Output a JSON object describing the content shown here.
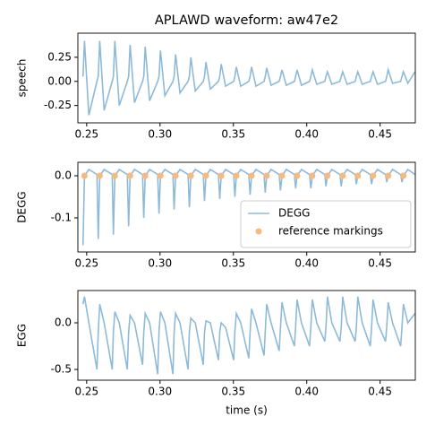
{
  "chart_data": [
    {
      "type": "line",
      "title": "APLAWD waveform: aw47e2",
      "ylabel": "speech",
      "xlim": [
        0.244,
        0.474
      ],
      "xticks": [
        0.25,
        {
          "value": 0.3,
          "label": "0.30"
        },
        0.35,
        {
          "value": 0.4,
          "label": "0.40"
        },
        0.45
      ],
      "ylim": [
        -0.43,
        0.5
      ],
      "yticks": [
        -0.25,
        {
          "value": 0,
          "label": "0.00"
        },
        0.25
      ],
      "x": [
        0.2475,
        0.2485,
        0.2515,
        0.257,
        0.2579,
        0.2589,
        0.2619,
        0.2674,
        0.2682,
        0.2692,
        0.2722,
        0.2777,
        0.2786,
        0.2796,
        0.2826,
        0.2881,
        0.2889,
        0.2899,
        0.2929,
        0.2984,
        0.2993,
        0.3003,
        0.3033,
        0.3088,
        0.3096,
        0.3106,
        0.3136,
        0.3191,
        0.32,
        0.321,
        0.324,
        0.3295,
        0.3303,
        0.3313,
        0.3343,
        0.3398,
        0.3407,
        0.3417,
        0.3447,
        0.3502,
        0.351,
        0.352,
        0.355,
        0.3605,
        0.3614,
        0.3624,
        0.3654,
        0.3709,
        0.3717,
        0.3727,
        0.3757,
        0.3812,
        0.3821,
        0.3831,
        0.3861,
        0.3916,
        0.3924,
        0.3934,
        0.3964,
        0.4019,
        0.4028,
        0.4038,
        0.4068,
        0.4123,
        0.4131,
        0.4141,
        0.4171,
        0.4226,
        0.4235,
        0.4245,
        0.4275,
        0.433,
        0.4338,
        0.4348,
        0.4378,
        0.4433,
        0.4442,
        0.4452,
        0.4482,
        0.4537,
        0.4545,
        0.4555,
        0.4585,
        0.464,
        0.4649,
        0.4659,
        0.4689,
        0.4738
      ],
      "series": [
        {
          "type": "line",
          "color": "#8dbad9",
          "values": [
            0.05,
            0.42,
            -0.35,
            0.0,
            0.05,
            0.42,
            -0.3,
            0.0,
            0.05,
            0.42,
            -0.25,
            0.0,
            0.05,
            0.38,
            -0.22,
            0.0,
            0.05,
            0.36,
            -0.2,
            0.0,
            0.05,
            0.32,
            -0.15,
            0.0,
            0.05,
            0.28,
            -0.12,
            0.0,
            0.05,
            0.25,
            -0.1,
            0.0,
            0.05,
            0.2,
            -0.08,
            0.0,
            0.05,
            0.18,
            -0.05,
            0.0,
            0.05,
            0.15,
            -0.05,
            0.0,
            0.05,
            0.15,
            -0.05,
            0.0,
            0.05,
            0.14,
            -0.04,
            0.0,
            0.05,
            0.12,
            -0.04,
            0.0,
            0.05,
            0.12,
            -0.04,
            0.0,
            0.05,
            0.12,
            -0.03,
            0.0,
            0.05,
            0.1,
            -0.03,
            0.0,
            0.05,
            0.1,
            -0.03,
            0.0,
            0.05,
            0.1,
            -0.03,
            0.0,
            0.05,
            0.1,
            -0.03,
            0.0,
            0.05,
            0.12,
            -0.02,
            0.0,
            0.05,
            0.1,
            -0.02,
            0.1
          ]
        }
      ]
    },
    {
      "type": "line",
      "ylabel": "DEGG",
      "xlim": [
        0.244,
        0.474
      ],
      "xticks": [
        0.25,
        {
          "value": 0.3,
          "label": "0.30"
        },
        0.35,
        {
          "value": 0.4,
          "label": "0.40"
        },
        0.45
      ],
      "ylim": [
        -0.181,
        0.032
      ],
      "yticks": [
        -0.1,
        {
          "value": 0,
          "label": "0.0"
        }
      ],
      "legend": "lower right",
      "x": [
        0.2475,
        0.2485,
        0.2515,
        0.257,
        0.2579,
        0.2589,
        0.2619,
        0.2674,
        0.2682,
        0.2692,
        0.2722,
        0.2777,
        0.2786,
        0.2796,
        0.2826,
        0.2881,
        0.2889,
        0.2899,
        0.2929,
        0.2984,
        0.2993,
        0.3003,
        0.3033,
        0.3088,
        0.3096,
        0.3106,
        0.3136,
        0.3191,
        0.32,
        0.321,
        0.324,
        0.3295,
        0.3303,
        0.3313,
        0.3343,
        0.3398,
        0.3407,
        0.3417,
        0.3447,
        0.3502,
        0.351,
        0.352,
        0.355,
        0.3605,
        0.3614,
        0.3624,
        0.3654,
        0.3709,
        0.3717,
        0.3727,
        0.3757,
        0.3812,
        0.3821,
        0.3831,
        0.3861,
        0.3916,
        0.3924,
        0.3934,
        0.3964,
        0.4019,
        0.4028,
        0.4038,
        0.4068,
        0.4123,
        0.4131,
        0.4141,
        0.4171,
        0.4226,
        0.4235,
        0.4245,
        0.4275,
        0.433,
        0.4338,
        0.4348,
        0.4378,
        0.4433,
        0.4442,
        0.4452,
        0.4482,
        0.4537,
        0.4545,
        0.4555,
        0.4585,
        0.464,
        0.4649,
        0.4659,
        0.4689,
        0.4738
      ],
      "series": [
        {
          "type": "line",
          "name": "DEGG",
          "color": "#8dbad9",
          "values": [
            -0.165,
            0.0,
            0.015,
            0.003,
            -0.15,
            0.0,
            0.015,
            0.003,
            -0.14,
            0.0,
            0.015,
            0.003,
            -0.12,
            0.0,
            0.015,
            0.003,
            -0.1,
            0.0,
            0.015,
            0.003,
            -0.09,
            0.0,
            0.015,
            0.003,
            -0.08,
            0.0,
            0.015,
            0.003,
            -0.075,
            0.0,
            0.015,
            0.003,
            -0.06,
            0.0,
            0.015,
            0.003,
            -0.055,
            0.0,
            0.015,
            0.003,
            -0.05,
            0.0,
            0.015,
            0.003,
            -0.045,
            0.0,
            0.015,
            0.003,
            -0.04,
            0.0,
            0.015,
            0.003,
            -0.035,
            0.0,
            0.015,
            0.003,
            -0.03,
            0.0,
            0.015,
            0.003,
            -0.03,
            0.0,
            0.015,
            0.003,
            -0.025,
            0.0,
            0.015,
            0.003,
            -0.025,
            0.0,
            0.015,
            0.003,
            -0.02,
            0.0,
            0.015,
            0.003,
            -0.02,
            0.0,
            0.015,
            0.003,
            -0.015,
            0.0,
            0.015,
            0.003,
            -0.015,
            0.0,
            0.015,
            0.003
          ]
        },
        {
          "type": "scatter",
          "name": "reference markings",
          "color": "#f8b97e",
          "x": [
            0.2485,
            0.2589,
            0.2692,
            0.2796,
            0.2899,
            0.3003,
            0.3106,
            0.321,
            0.3313,
            0.3417,
            0.352,
            0.3624,
            0.3727,
            0.3831,
            0.3934,
            0.4038,
            0.4141,
            0.4245,
            0.4348,
            0.4452,
            0.4555,
            0.4659
          ],
          "values": [
            0,
            0,
            0,
            0,
            0,
            0,
            0,
            0,
            0,
            0,
            0,
            0,
            0,
            0,
            0,
            0,
            0,
            0,
            0,
            0,
            0,
            0
          ]
        }
      ]
    },
    {
      "type": "line",
      "ylabel": "EGG",
      "xlabel": "time (s)",
      "xlim": [
        0.244,
        0.474
      ],
      "xticks": [
        0.25,
        {
          "value": 0.3,
          "label": "0.30"
        },
        0.35,
        {
          "value": 0.4,
          "label": "0.40"
        },
        0.45
      ],
      "ylim": [
        -0.615,
        0.346
      ],
      "yticks": [
        -0.5,
        {
          "value": 0,
          "label": "0.0"
        }
      ],
      "x": [
        0.2475,
        0.2485,
        0.2515,
        0.257,
        0.2579,
        0.2589,
        0.2619,
        0.2674,
        0.2682,
        0.2692,
        0.2722,
        0.2777,
        0.2786,
        0.2796,
        0.2826,
        0.2881,
        0.2889,
        0.2899,
        0.2929,
        0.2984,
        0.2993,
        0.3003,
        0.3033,
        0.3088,
        0.3096,
        0.3106,
        0.3136,
        0.3191,
        0.32,
        0.321,
        0.324,
        0.3295,
        0.3303,
        0.3313,
        0.3343,
        0.3398,
        0.3407,
        0.3417,
        0.3447,
        0.3502,
        0.351,
        0.352,
        0.355,
        0.3605,
        0.3614,
        0.3624,
        0.3654,
        0.3709,
        0.3717,
        0.3727,
        0.3757,
        0.3812,
        0.3821,
        0.3831,
        0.3861,
        0.3916,
        0.3924,
        0.3934,
        0.3964,
        0.4019,
        0.4028,
        0.4038,
        0.4068,
        0.4123,
        0.4131,
        0.4141,
        0.4171,
        0.4226,
        0.4235,
        0.4245,
        0.4275,
        0.433,
        0.4338,
        0.4348,
        0.4378,
        0.4433,
        0.4442,
        0.4452,
        0.4482,
        0.4537,
        0.4545,
        0.4555,
        0.4585,
        0.464,
        0.4649,
        0.4659,
        0.4689,
        0.4738
      ],
      "series": [
        {
          "type": "line",
          "color": "#8dbad9",
          "values": [
            0.2,
            0.28,
            0.0,
            -0.5,
            -0.1,
            0.2,
            0.0,
            -0.5,
            -0.1,
            0.12,
            0.0,
            -0.5,
            -0.1,
            0.08,
            0.0,
            -0.45,
            -0.1,
            0.1,
            0.0,
            -0.55,
            -0.1,
            0.12,
            0.0,
            -0.55,
            -0.1,
            0.1,
            0.0,
            -0.5,
            -0.1,
            0.05,
            0.0,
            -0.45,
            -0.1,
            0.02,
            0.0,
            -0.4,
            -0.1,
            0.0,
            -0.05,
            -0.4,
            -0.1,
            0.1,
            0.0,
            -0.38,
            -0.1,
            0.15,
            0.0,
            -0.35,
            -0.1,
            0.2,
            0.0,
            -0.3,
            -0.05,
            0.22,
            0.0,
            -0.25,
            -0.05,
            0.25,
            0.0,
            -0.25,
            -0.05,
            0.25,
            0.0,
            -0.2,
            -0.05,
            0.28,
            0.0,
            -0.2,
            -0.05,
            0.28,
            0.0,
            -0.2,
            -0.05,
            0.28,
            0.0,
            -0.25,
            -0.05,
            0.25,
            0.0,
            -0.2,
            -0.05,
            0.22,
            0.0,
            -0.25,
            -0.05,
            0.2,
            0.0,
            0.1
          ]
        }
      ]
    }
  ]
}
